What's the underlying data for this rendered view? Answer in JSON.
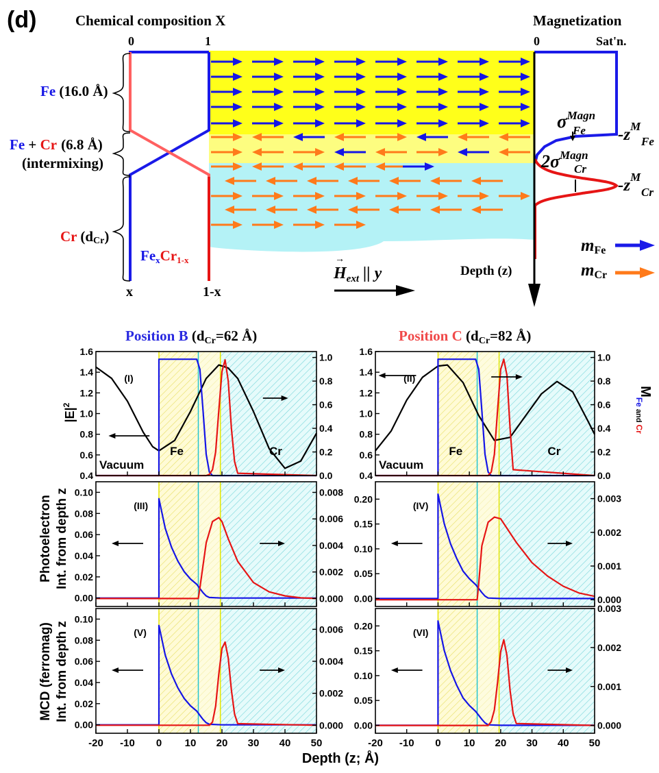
{
  "top": {
    "panel_label": "(d)",
    "chem_title": "Chemical composition X",
    "mag_title": "Magnetization",
    "comp_tick_0": "0",
    "comp_tick_1": "1",
    "mag_tick_0": "0",
    "mag_tick_sat": "Sat'n.",
    "layers": {
      "fe_name": "Fe",
      "fe_thick": "(16.0 Å)",
      "mix_fe": "Fe",
      "mix_plus": " + ",
      "mix_cr": "Cr",
      "mix_thick": "(6.8 Å)",
      "mix_note": "(intermixing)",
      "cr_name": "Cr",
      "cr_open": "(d",
      "cr_sub": "Cr",
      "cr_close": ")"
    },
    "formula": {
      "fe": "Fe",
      "x": "x",
      "cr": "Cr",
      "sub": "1-x"
    },
    "bottom_x": "x",
    "bottom_1x": "1-x",
    "hext": {
      "H": "H",
      "sub": "ext",
      "rest": " || y"
    },
    "depth_label": "Depth (z)",
    "sigma_fe": {
      "sym": "σ",
      "sup": "Magn",
      "sub": "Fe"
    },
    "sigma_cr": {
      "pre": "2σ",
      "sup": "Magn",
      "sub": "Cr"
    },
    "z_fe": {
      "z": "-z",
      "sup": "M",
      "sub": "Fe"
    },
    "z_cr": {
      "z": "-z",
      "sup": "M",
      "sub": "Cr"
    },
    "m_fe": {
      "m": "m",
      "sub": "Fe"
    },
    "m_cr": {
      "m": "m",
      "sub": "Cr"
    },
    "colors": {
      "fe": "#1515e6",
      "cr": "#e61515",
      "fe_region": "#ffff00",
      "cr_region": "#b0f4f8",
      "arrow_cr": "#ff7a1a"
    }
  },
  "positions": {
    "b": {
      "label": "Position B",
      "paren": "(d",
      "sub": "Cr",
      "value": "=62 Å)"
    },
    "c": {
      "label": "Position C",
      "paren": "(d",
      "sub": "Cr",
      "value": "=82 Å)"
    }
  },
  "axes_text": {
    "e2_label": "|E|",
    "e2_sup": "2",
    "photo_l1": "Photoelectron",
    "photo_l2": "Int. from depth z",
    "mcd_l1": "MCD (ferromag)",
    "mcd_l2": "Int. from depth z",
    "m_right": "M",
    "m_right_sub_fe": "Fe",
    "m_right_sub_and": " and ",
    "m_right_sub_cr": "Cr",
    "xlabel": "Depth (z; Å)",
    "vacuum": "Vacuum",
    "fe": "Fe",
    "cr": "Cr"
  },
  "chart_data": [
    {
      "id": "I",
      "type": "line",
      "panel_label": "(I)",
      "xlim": [
        -20,
        50
      ],
      "ylim": [
        0.4,
        1.6
      ],
      "y2lim": [
        0,
        1.05
      ],
      "yticks": [
        0.4,
        0.6,
        0.8,
        1.0,
        1.2,
        1.4,
        1.6
      ],
      "y2ticks": [
        0.0,
        0.2,
        0.4,
        0.6,
        0.8,
        1.0
      ],
      "series": [
        {
          "name": "|E|^2",
          "axis": "left",
          "color": "#000000",
          "x": [
            -20,
            -15,
            -10,
            -5,
            -2,
            0,
            5,
            10,
            15,
            19,
            22,
            25,
            30,
            35,
            40,
            45,
            50
          ],
          "y": [
            1.45,
            1.34,
            1.12,
            0.82,
            0.68,
            0.64,
            0.74,
            1.02,
            1.34,
            1.47,
            1.44,
            1.34,
            1.02,
            0.66,
            0.47,
            0.54,
            0.81
          ]
        },
        {
          "name": "M Fe",
          "axis": "right",
          "color": "#1515e6",
          "x": [
            -20,
            -0.01,
            0,
            12,
            13,
            14,
            15,
            16,
            17,
            50
          ],
          "y": [
            0,
            0,
            0.985,
            0.985,
            0.9,
            0.55,
            0.18,
            0.03,
            0,
            0
          ]
        },
        {
          "name": "M Cr",
          "axis": "right",
          "color": "#e61515",
          "x": [
            -20,
            15,
            16,
            17,
            18,
            19,
            20,
            21,
            22,
            23,
            24,
            25,
            50
          ],
          "y": [
            0,
            0,
            0.01,
            0.05,
            0.2,
            0.55,
            0.88,
            0.98,
            0.8,
            0.4,
            0.12,
            0.02,
            0
          ]
        }
      ]
    },
    {
      "id": "II",
      "type": "line",
      "panel_label": "(II)",
      "xlim": [
        -20,
        50
      ],
      "ylim": [
        0.4,
        1.6
      ],
      "y2lim": [
        0,
        1.05
      ],
      "yticks": [
        0.4,
        0.6,
        0.8,
        1.0,
        1.2,
        1.4,
        1.6
      ],
      "y2ticks": [
        0.0,
        0.2,
        0.4,
        0.6,
        0.8,
        1.0
      ],
      "series": [
        {
          "name": "|E|^2",
          "axis": "left",
          "color": "#000000",
          "x": [
            -20,
            -15,
            -10,
            -5,
            0,
            3,
            8,
            13,
            18,
            23,
            28,
            33,
            38,
            43,
            48,
            50
          ],
          "y": [
            0.64,
            0.83,
            1.13,
            1.35,
            1.46,
            1.47,
            1.3,
            0.98,
            0.74,
            0.77,
            0.98,
            1.19,
            1.31,
            1.21,
            0.92,
            0.8
          ]
        },
        {
          "name": "M Fe",
          "axis": "right",
          "color": "#1515e6",
          "x": [
            -20,
            -0.01,
            0,
            12,
            13,
            14,
            15,
            16,
            17,
            50
          ],
          "y": [
            0,
            0,
            0.985,
            0.985,
            0.9,
            0.55,
            0.18,
            0.03,
            0,
            0
          ]
        },
        {
          "name": "M Cr",
          "axis": "right",
          "color": "#e61515",
          "x": [
            -20,
            16,
            17,
            18,
            19,
            20,
            21,
            22,
            23,
            24,
            50
          ],
          "y": [
            0,
            0,
            0.03,
            0.18,
            0.55,
            0.9,
            0.985,
            0.85,
            0.4,
            0.05,
            0
          ]
        }
      ]
    },
    {
      "id": "III",
      "type": "line",
      "panel_label": "(III)",
      "xlim": [
        -20,
        50
      ],
      "ylim": [
        -0.008,
        0.11
      ],
      "y2lim": [
        -0.0006,
        0.0088
      ],
      "yticks": [
        0.0,
        0.02,
        0.04,
        0.06,
        0.08,
        0.1
      ],
      "y2ticks": [
        0.0,
        0.002,
        0.004,
        0.006,
        0.008
      ],
      "series": [
        {
          "name": "Fe",
          "axis": "left",
          "color": "#1515e6",
          "x": [
            -20,
            -0.01,
            0,
            2,
            4,
            6,
            8,
            10,
            12,
            13,
            14,
            15,
            16,
            20,
            50
          ],
          "y": [
            0,
            0,
            0.094,
            0.066,
            0.048,
            0.035,
            0.025,
            0.018,
            0.013,
            0.009,
            0.005,
            0.002,
            0.0005,
            0,
            0
          ]
        },
        {
          "name": "Cr",
          "axis": "right",
          "color": "#e61515",
          "x": [
            -20,
            12.5,
            13,
            15,
            17,
            19,
            20,
            22,
            25,
            30,
            35,
            40,
            45,
            50
          ],
          "y": [
            0,
            0,
            0.0008,
            0.0042,
            0.0058,
            0.0061,
            0.0058,
            0.0045,
            0.0028,
            0.0012,
            0.0005,
            0.0002,
            5e-05,
            0
          ]
        }
      ]
    },
    {
      "id": "IV",
      "type": "line",
      "panel_label": "(IV)",
      "xlim": [
        -20,
        50
      ],
      "ylim": [
        -0.016,
        0.235
      ],
      "y2lim": [
        -0.0002,
        0.0035
      ],
      "yticks": [
        0.0,
        0.05,
        0.1,
        0.15,
        0.2
      ],
      "y2ticks": [
        0.0,
        0.001,
        0.002,
        0.003
      ],
      "series": [
        {
          "name": "Fe",
          "axis": "left",
          "color": "#1515e6",
          "x": [
            -20,
            -0.01,
            0,
            2,
            4,
            6,
            8,
            10,
            12,
            13,
            14,
            15,
            16,
            20,
            50
          ],
          "y": [
            0,
            0,
            0.21,
            0.15,
            0.11,
            0.08,
            0.055,
            0.04,
            0.028,
            0.02,
            0.012,
            0.005,
            0.001,
            0,
            0
          ]
        },
        {
          "name": "Cr",
          "axis": "right",
          "color": "#e61515",
          "x": [
            -20,
            12.5,
            13,
            14,
            16,
            18,
            20,
            25,
            30,
            35,
            40,
            45,
            50
          ],
          "y": [
            0,
            0,
            0.0005,
            0.0016,
            0.0023,
            0.00245,
            0.0024,
            0.0017,
            0.0011,
            0.0007,
            0.0004,
            0.0002,
            0.0001
          ]
        }
      ]
    },
    {
      "id": "V",
      "type": "line",
      "panel_label": "(V)",
      "xlim": [
        -20,
        50
      ],
      "ylim": [
        -0.008,
        0.11
      ],
      "y2lim": [
        -0.0005,
        0.0073
      ],
      "yticks": [
        0.0,
        0.02,
        0.04,
        0.06,
        0.08,
        0.1
      ],
      "y2ticks": [
        0.0,
        0.002,
        0.004,
        0.006
      ],
      "series": [
        {
          "name": "Fe",
          "axis": "left",
          "color": "#1515e6",
          "x": [
            -20,
            -0.01,
            0,
            2,
            4,
            6,
            8,
            10,
            12,
            13,
            14,
            15,
            16,
            20,
            50
          ],
          "y": [
            0,
            0,
            0.094,
            0.066,
            0.048,
            0.035,
            0.025,
            0.018,
            0.013,
            0.009,
            0.005,
            0.002,
            0.0005,
            0,
            0
          ]
        },
        {
          "name": "Cr",
          "axis": "right",
          "color": "#e61515",
          "x": [
            -20,
            16,
            17,
            18,
            19,
            20,
            21,
            22,
            23,
            24,
            25,
            50
          ],
          "y": [
            0,
            0,
            0.0002,
            0.0012,
            0.0032,
            0.0048,
            0.0052,
            0.0042,
            0.0022,
            0.0007,
            0.0001,
            0
          ]
        }
      ]
    },
    {
      "id": "VI",
      "type": "line",
      "panel_label": "(VI)",
      "xlim": [
        -20,
        50
      ],
      "ylim": [
        -0.016,
        0.235
      ],
      "y2lim": [
        -0.0002,
        0.003
      ],
      "yticks": [
        0.0,
        0.05,
        0.1,
        0.15,
        0.2
      ],
      "y2ticks": [
        0.0,
        0.001,
        0.002,
        0.003
      ],
      "series": [
        {
          "name": "Fe",
          "axis": "left",
          "color": "#1515e6",
          "x": [
            -20,
            -0.01,
            0,
            2,
            4,
            6,
            8,
            10,
            12,
            13,
            14,
            15,
            16,
            20,
            50
          ],
          "y": [
            0,
            0,
            0.21,
            0.15,
            0.11,
            0.08,
            0.055,
            0.04,
            0.028,
            0.02,
            0.012,
            0.005,
            0.001,
            0,
            0
          ]
        },
        {
          "name": "Cr",
          "axis": "right",
          "color": "#e61515",
          "x": [
            -20,
            16,
            17,
            18,
            19,
            20,
            21,
            22,
            23,
            24,
            25,
            50
          ],
          "y": [
            0,
            0,
            0.0001,
            0.0004,
            0.0011,
            0.0019,
            0.0022,
            0.0018,
            0.0009,
            0.0003,
            5e-05,
            0
          ]
        }
      ]
    }
  ],
  "xticks": [
    -20,
    -10,
    0,
    10,
    20,
    30,
    40,
    50
  ]
}
